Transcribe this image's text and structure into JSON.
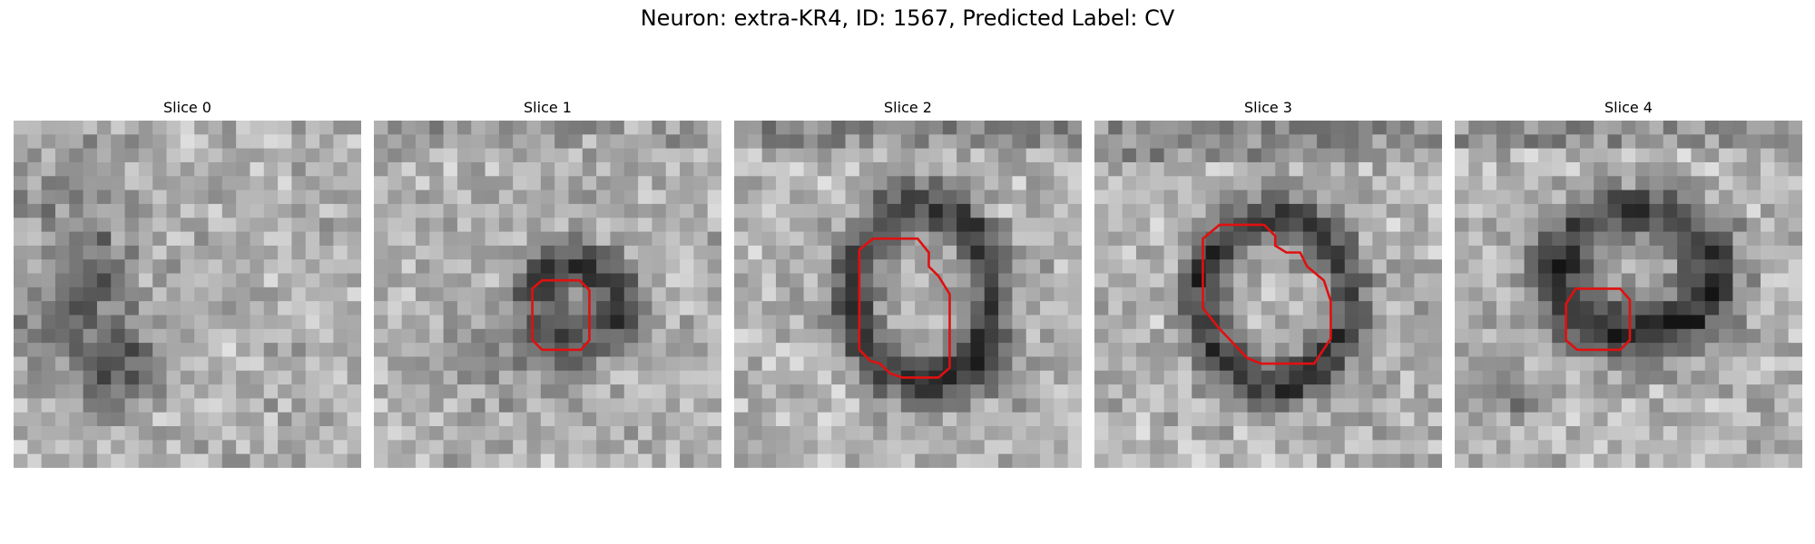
{
  "figure": {
    "title": "Neuron: extra-KR4, ID: 1567, Predicted Label: CV",
    "contour_color": "#e01010"
  },
  "panels": [
    {
      "title": "Slice 0"
    },
    {
      "title": "Slice 1"
    },
    {
      "title": "Slice 2"
    },
    {
      "title": "Slice 3"
    },
    {
      "title": "Slice 4"
    }
  ]
}
